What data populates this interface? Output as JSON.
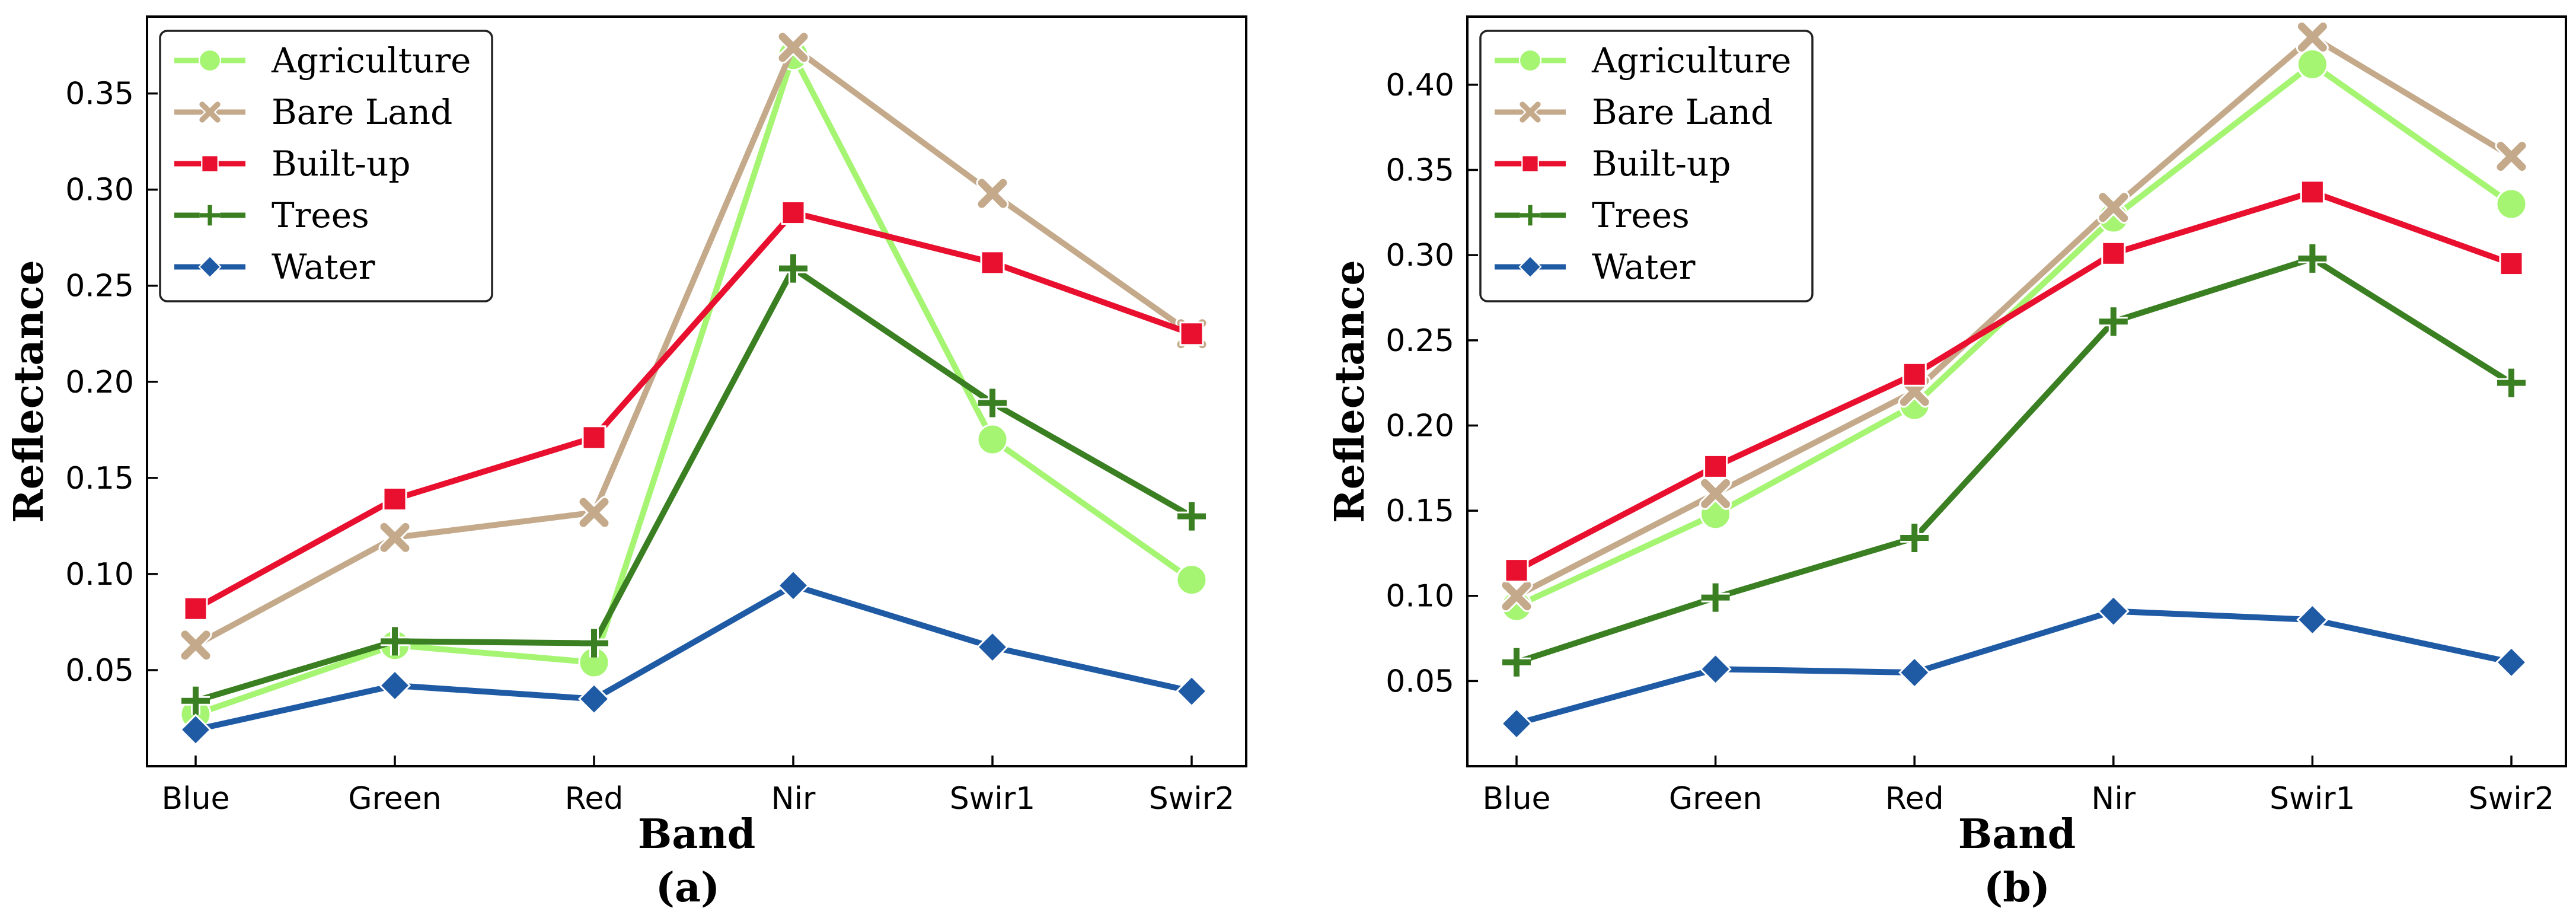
{
  "colors": {
    "Agriculture": "#a5f573",
    "Bare Land": "#c4aa8b",
    "Built-up": "#e8102e",
    "Trees": "#3a7f21",
    "Water": "#1f5aa5"
  },
  "markers": {
    "Agriculture": "circle",
    "Bare Land": "x",
    "Built-up": "square",
    "Trees": "plus",
    "Water": "diamond"
  },
  "chart_data": [
    {
      "type": "line",
      "caption": "(a)",
      "xlabel": "Band",
      "ylabel": "Reflectance",
      "categories": [
        "Blue",
        "Green",
        "Red",
        "Nir",
        "Swir1",
        "Swir2"
      ],
      "ylim": [
        0.0,
        0.39
      ],
      "yticks": [
        0.05,
        0.1,
        0.15,
        0.2,
        0.25,
        0.3,
        0.35
      ],
      "ytick_labels": [
        "0.05",
        "0.10",
        "0.15",
        "0.20",
        "0.25",
        "0.30",
        "0.35"
      ],
      "legend_position": "upper-left",
      "series": [
        {
          "name": "Agriculture",
          "values": [
            0.027,
            0.063,
            0.054,
            0.37,
            0.17,
            0.097
          ]
        },
        {
          "name": "Bare Land",
          "values": [
            0.063,
            0.119,
            0.132,
            0.374,
            0.298,
            0.225
          ]
        },
        {
          "name": "Built-up",
          "values": [
            0.082,
            0.139,
            0.171,
            0.288,
            0.262,
            0.225
          ]
        },
        {
          "name": "Trees",
          "values": [
            0.034,
            0.065,
            0.064,
            0.259,
            0.189,
            0.13
          ]
        },
        {
          "name": "Water",
          "values": [
            0.019,
            0.042,
            0.035,
            0.094,
            0.062,
            0.039
          ]
        }
      ]
    },
    {
      "type": "line",
      "caption": "(b)",
      "xlabel": "Band",
      "ylabel": "Reflectance",
      "categories": [
        "Blue",
        "Green",
        "Red",
        "Nir",
        "Swir1",
        "Swir2"
      ],
      "ylim": [
        0.0,
        0.44
      ],
      "yticks": [
        0.05,
        0.1,
        0.15,
        0.2,
        0.25,
        0.3,
        0.35,
        0.4
      ],
      "ytick_labels": [
        "0.05",
        "0.10",
        "0.15",
        "0.20",
        "0.25",
        "0.30",
        "0.35",
        "0.40"
      ],
      "legend_position": "upper-left",
      "series": [
        {
          "name": "Agriculture",
          "values": [
            0.094,
            0.148,
            0.212,
            0.322,
            0.412,
            0.33
          ]
        },
        {
          "name": "Bare Land",
          "values": [
            0.1,
            0.16,
            0.22,
            0.328,
            0.428,
            0.358
          ]
        },
        {
          "name": "Built-up",
          "values": [
            0.115,
            0.176,
            0.23,
            0.301,
            0.337,
            0.295
          ]
        },
        {
          "name": "Trees",
          "values": [
            0.061,
            0.099,
            0.134,
            0.261,
            0.298,
            0.225
          ]
        },
        {
          "name": "Water",
          "values": [
            0.025,
            0.057,
            0.055,
            0.091,
            0.086,
            0.061
          ]
        }
      ]
    }
  ]
}
